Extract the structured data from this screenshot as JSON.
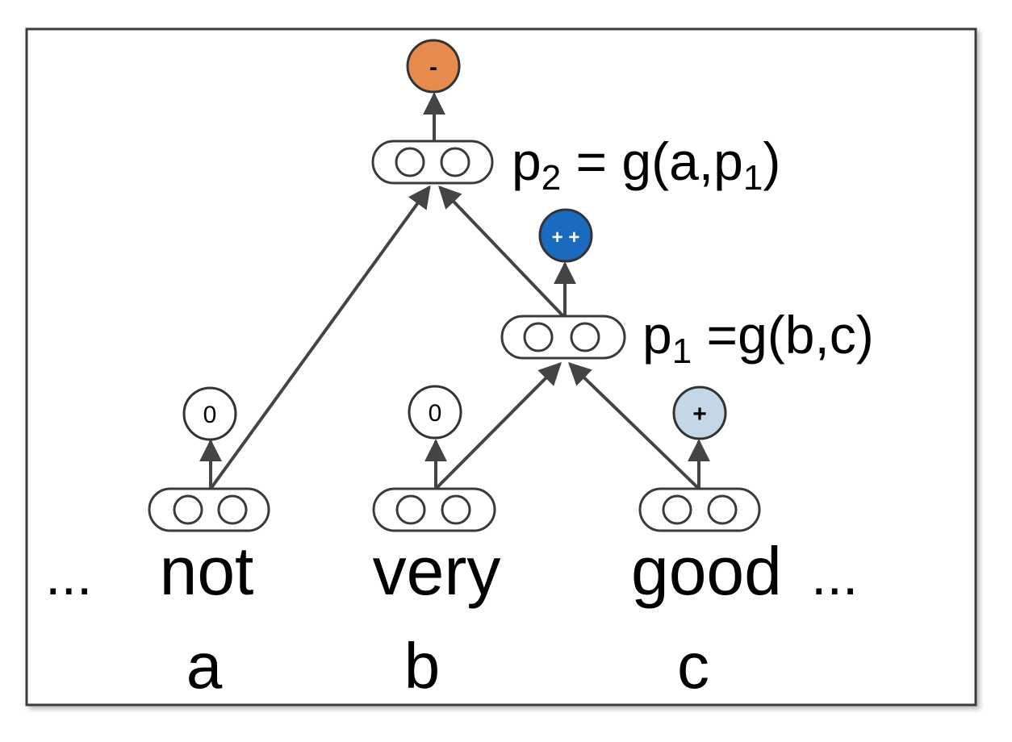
{
  "words": [
    {
      "id": "not",
      "text": "not",
      "var": "a"
    },
    {
      "id": "very",
      "text": "very",
      "var": "b"
    },
    {
      "id": "good",
      "text": "good",
      "var": "c"
    }
  ],
  "ellipsis_left": "...",
  "ellipsis_right": "...",
  "formulas": {
    "p1": {
      "name": "p",
      "sub": "1",
      "rest": " =g(b,c)"
    },
    "p2": {
      "name": "p",
      "sub": "2",
      "pre_rest": " = g(a,p",
      "sub2": "1",
      "post_rest": ")"
    }
  },
  "sentiments": {
    "not": {
      "label": "0",
      "color": "#ffffff",
      "text_color": "#000000"
    },
    "very": {
      "label": "0",
      "color": "#ffffff",
      "text_color": "#000000"
    },
    "good": {
      "label": "+",
      "color": "#c5d6e6",
      "text_color": "#000000"
    },
    "p1": {
      "label": "+ +",
      "color": "#1a6bbf",
      "text_color": "#ffffff"
    },
    "p2": {
      "label": "-",
      "color": "#e68a4e",
      "text_color": "#000000"
    }
  }
}
